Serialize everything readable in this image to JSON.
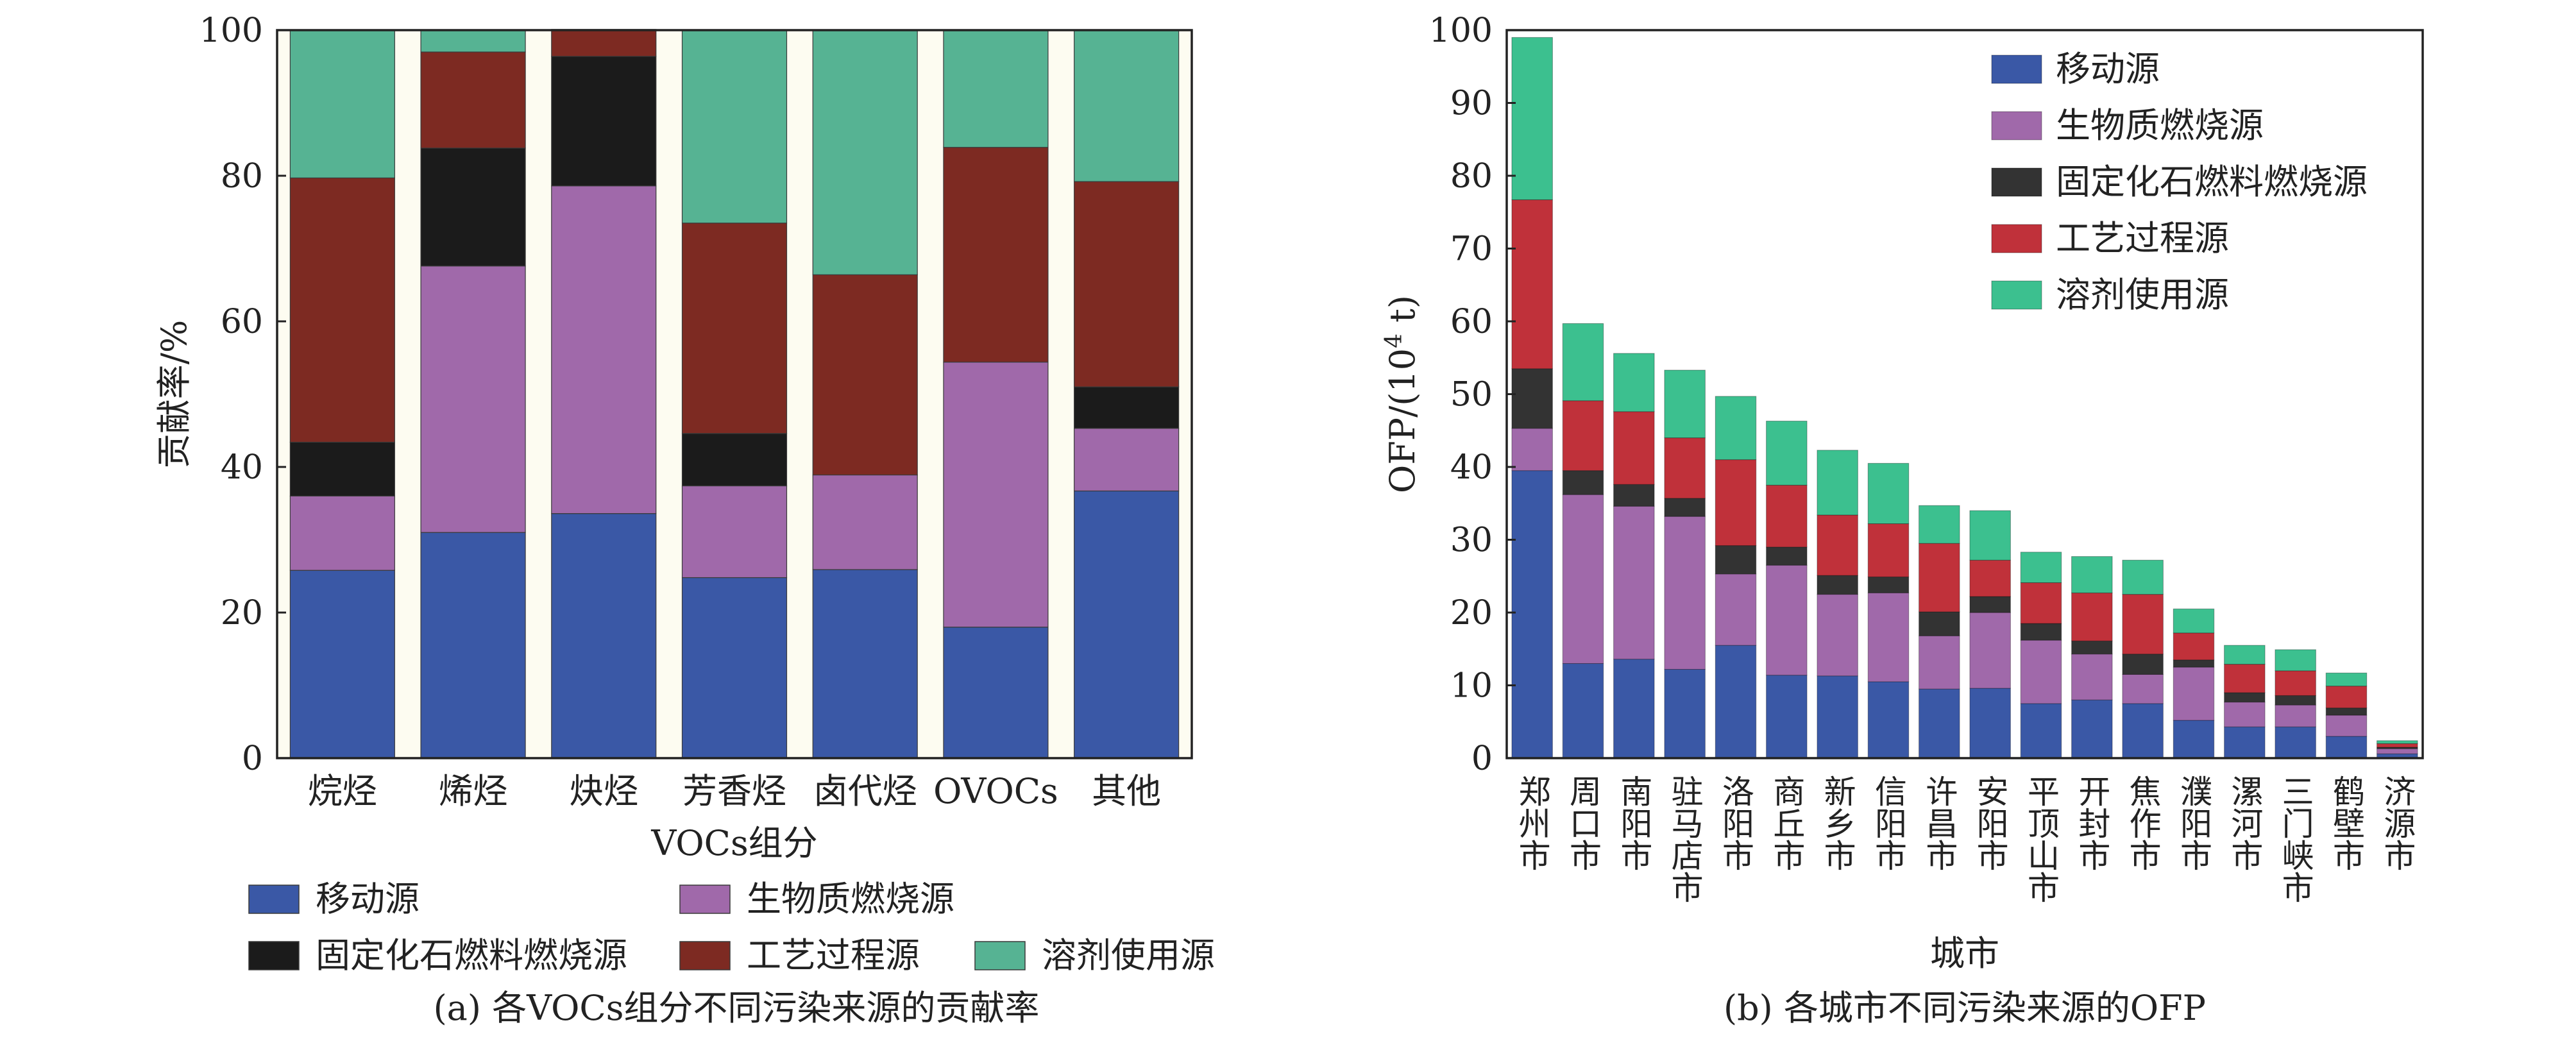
{
  "chart_data": [
    {
      "type": "bar",
      "stacked": true,
      "title": "",
      "caption": "(a) 各VOCs组分不同污染来源的贡献率",
      "xlabel": "VOCs组分",
      "ylabel": "贡献率/%",
      "ylim": [
        0,
        100
      ],
      "yticks": [
        0,
        20,
        40,
        60,
        80,
        100
      ],
      "grid": false,
      "legend_position": "bottom",
      "categories": [
        "烷烃",
        "烯烃",
        "炔烃",
        "芳香烃",
        "卤代烃",
        "OVOCs",
        "其他"
      ],
      "series": [
        {
          "name": "移动源",
          "color": "#3a58a6",
          "values": [
            25.8,
            31.0,
            33.6,
            24.8,
            25.9,
            18.0,
            36.7
          ]
        },
        {
          "name": "生物质燃烧源",
          "color": "#a069aa",
          "values": [
            10.2,
            36.6,
            45.0,
            12.6,
            13.0,
            36.4,
            8.6
          ]
        },
        {
          "name": "固定化石燃料燃烧源",
          "color": "#1b1b1b",
          "values": [
            7.4,
            16.2,
            17.8,
            7.2,
            0.0,
            0.0,
            5.7
          ]
        },
        {
          "name": "工艺过程源",
          "color": "#7d2a22",
          "values": [
            36.3,
            13.2,
            3.7,
            28.9,
            27.5,
            29.5,
            28.2
          ]
        },
        {
          "name": "溶剂使用源",
          "color": "#56b393",
          "values": [
            20.3,
            3.0,
            0.0,
            26.5,
            33.6,
            16.1,
            20.8
          ]
        }
      ]
    },
    {
      "type": "bar",
      "stacked": true,
      "title": "",
      "caption": "(b) 各城市不同污染来源的OFP",
      "xlabel": "城市",
      "ylabel_prefix": "OFP/(10",
      "ylabel_sup": "4",
      "ylabel_suffix": " t)",
      "ylim": [
        0,
        100
      ],
      "yticks": [
        0,
        10,
        20,
        30,
        40,
        50,
        60,
        70,
        80,
        90,
        100
      ],
      "grid": false,
      "legend_position": "top-right",
      "categories": [
        "郑州市",
        "周口市",
        "南阳市",
        "驻马店市",
        "洛阳市",
        "商丘市",
        "新乡市",
        "信阳市",
        "许昌市",
        "安阳市",
        "平顶山市",
        "开封市",
        "焦作市",
        "濮阳市",
        "漯河市",
        "三门峡市",
        "鹤壁市",
        "济源市"
      ],
      "series": [
        {
          "name": "移动源",
          "color": "#3a58a6",
          "values": [
            39.5,
            13.0,
            13.6,
            12.2,
            15.5,
            11.4,
            11.3,
            10.5,
            9.5,
            9.6,
            7.5,
            8.0,
            7.5,
            5.2,
            4.3,
            4.3,
            3.0,
            0.6
          ]
        },
        {
          "name": "生物质燃烧源",
          "color": "#a069aa",
          "values": [
            5.8,
            23.2,
            21.0,
            21.0,
            9.8,
            15.1,
            11.2,
            12.2,
            7.3,
            10.4,
            8.7,
            6.3,
            4.0,
            7.3,
            3.4,
            3.0,
            2.9,
            0.7
          ]
        },
        {
          "name": "固定化石燃料燃烧源",
          "color": "#333333",
          "values": [
            8.2,
            3.3,
            3.0,
            2.5,
            3.9,
            2.5,
            2.6,
            2.2,
            3.3,
            2.2,
            2.3,
            1.8,
            2.8,
            1.0,
            1.3,
            1.3,
            1.0,
            0.2
          ]
        },
        {
          "name": "工艺过程源",
          "color": "#c0313a",
          "values": [
            23.2,
            9.6,
            10.0,
            8.3,
            11.8,
            8.5,
            8.3,
            7.3,
            9.4,
            5.0,
            5.6,
            6.6,
            8.2,
            3.7,
            3.9,
            3.4,
            3.0,
            0.5
          ]
        },
        {
          "name": "溶剂使用源",
          "color": "#3cc08f",
          "values": [
            22.3,
            10.6,
            8.0,
            9.3,
            8.7,
            8.8,
            8.9,
            8.3,
            5.2,
            6.8,
            4.2,
            5.0,
            4.7,
            3.3,
            2.6,
            2.9,
            1.8,
            0.4
          ]
        }
      ]
    }
  ]
}
